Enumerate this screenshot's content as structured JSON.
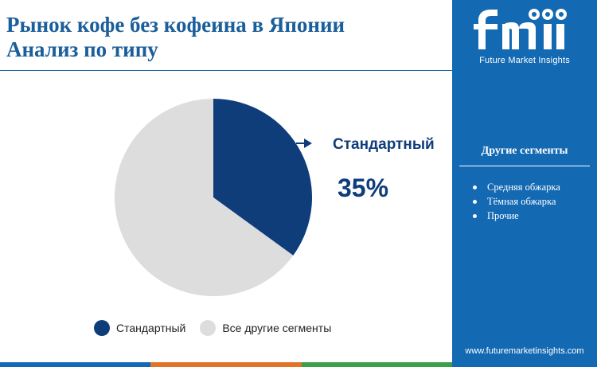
{
  "header": {
    "title_line1": "Рынок кофе без кофеина в Японии",
    "title_line2": "Анализ  по типу"
  },
  "colors": {
    "accent": "#1a5e9a",
    "sidebar": "#1469b3",
    "primary_slice": "#0f3d7a",
    "other_slice": "#dddddd"
  },
  "chart_data": {
    "type": "pie",
    "slices": [
      {
        "name": "Стандартный",
        "value": 35,
        "color": "#0f3d7a"
      },
      {
        "name": "Все другие сегменты",
        "value": 65,
        "color": "#dddddd"
      }
    ],
    "callout": {
      "label": "Стандартный",
      "value_text": "35%"
    },
    "legend": [
      "Стандартный",
      "Все другие сегменты"
    ],
    "legend_placement": "bottom"
  },
  "sidebar": {
    "logo_text": "Future Market Insights",
    "heading": "Другие сегменты",
    "items": [
      "Средняя обжарка",
      "Тёмная обжарка",
      "Прочие"
    ],
    "url": "www.futuremarketinsights.com"
  }
}
